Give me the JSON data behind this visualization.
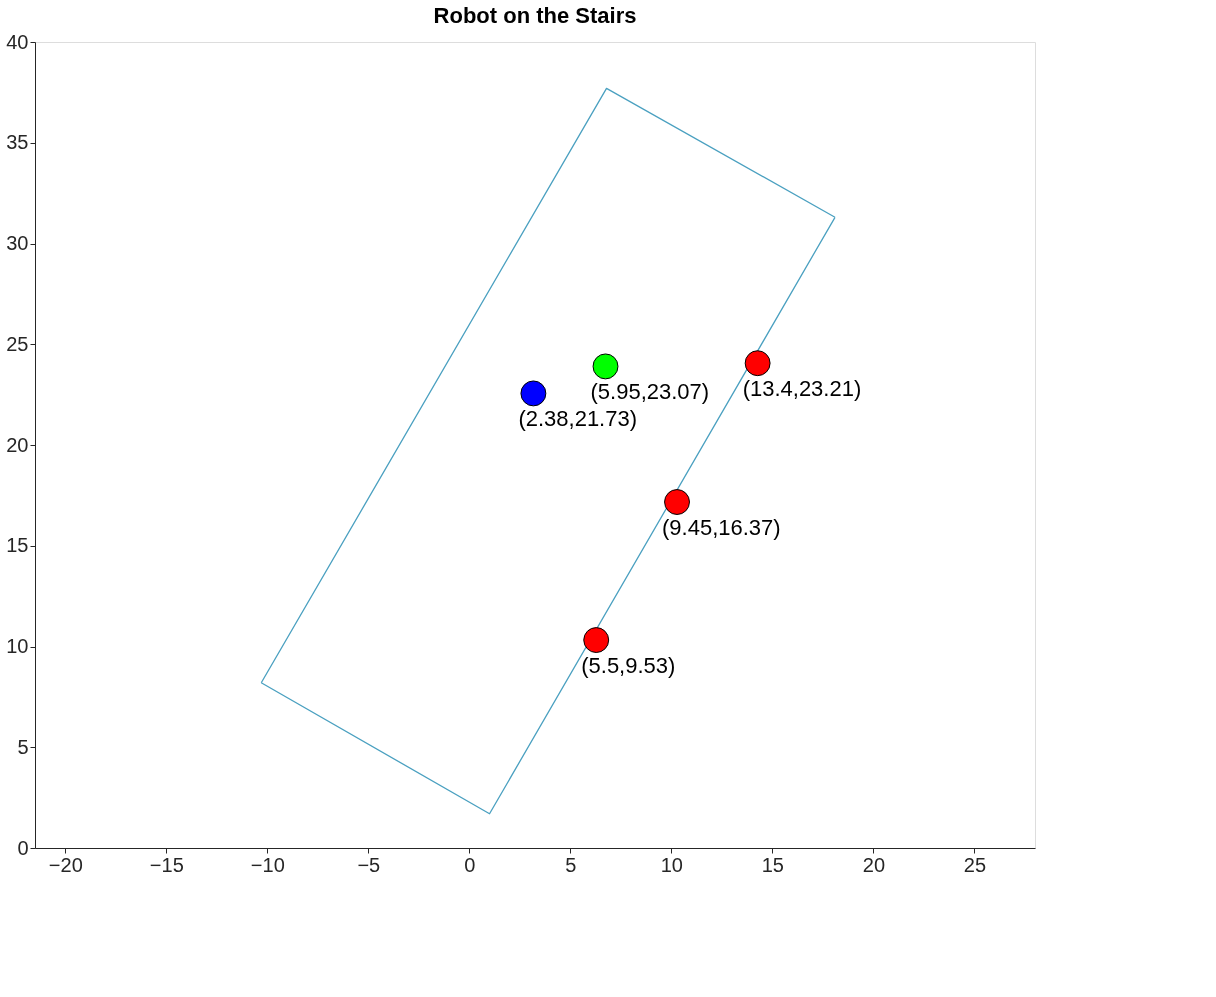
{
  "chart_data": {
    "type": "scatter",
    "title": "Robot on the Stairs",
    "xlim": [
      -21.5,
      28
    ],
    "ylim": [
      0,
      40
    ],
    "xticks": [
      -20,
      -15,
      -10,
      -5,
      0,
      5,
      10,
      15,
      20,
      25
    ],
    "yticks": [
      0,
      5,
      10,
      15,
      20,
      25,
      30,
      35,
      40
    ],
    "grid": false,
    "marker": "circle",
    "series": [
      {
        "type": "line",
        "color": "#4aa0c0",
        "x": [
          -10.3,
          6.79,
          18.1
        ],
        "values": [
          8.2,
          37.7,
          31.3
        ],
        "marker": "none",
        "line_style": "solid"
      },
      {
        "type": "line",
        "color": "#4aa0c0",
        "x": [
          -10.3,
          1.0,
          18.1
        ],
        "values": [
          8.2,
          1.7,
          31.3
        ],
        "marker": "none",
        "line_style": "solid"
      },
      {
        "x": [
          3.17,
          6.74,
          14.27,
          10.28,
          6.28
        ],
        "values": [
          22.56,
          23.9,
          24.06,
          17.17,
          10.32
        ],
        "colors": [
          "#0000ff",
          "#00ff00",
          "#ff0000",
          "#ff0000",
          "#ff0000"
        ]
      }
    ],
    "annotations": [
      {
        "text": "(2.38,21.73)",
        "x": 3.17,
        "y": 22.56
      },
      {
        "text": "(5.95,23.07)",
        "x": 6.74,
        "y": 23.9
      },
      {
        "text": "(13.4,23.21)",
        "x": 14.27,
        "y": 24.06
      },
      {
        "text": "(9.45,16.37)",
        "x": 10.28,
        "y": 17.17
      },
      {
        "text": "(5.5,9.53)",
        "x": 6.28,
        "y": 10.32
      }
    ]
  }
}
